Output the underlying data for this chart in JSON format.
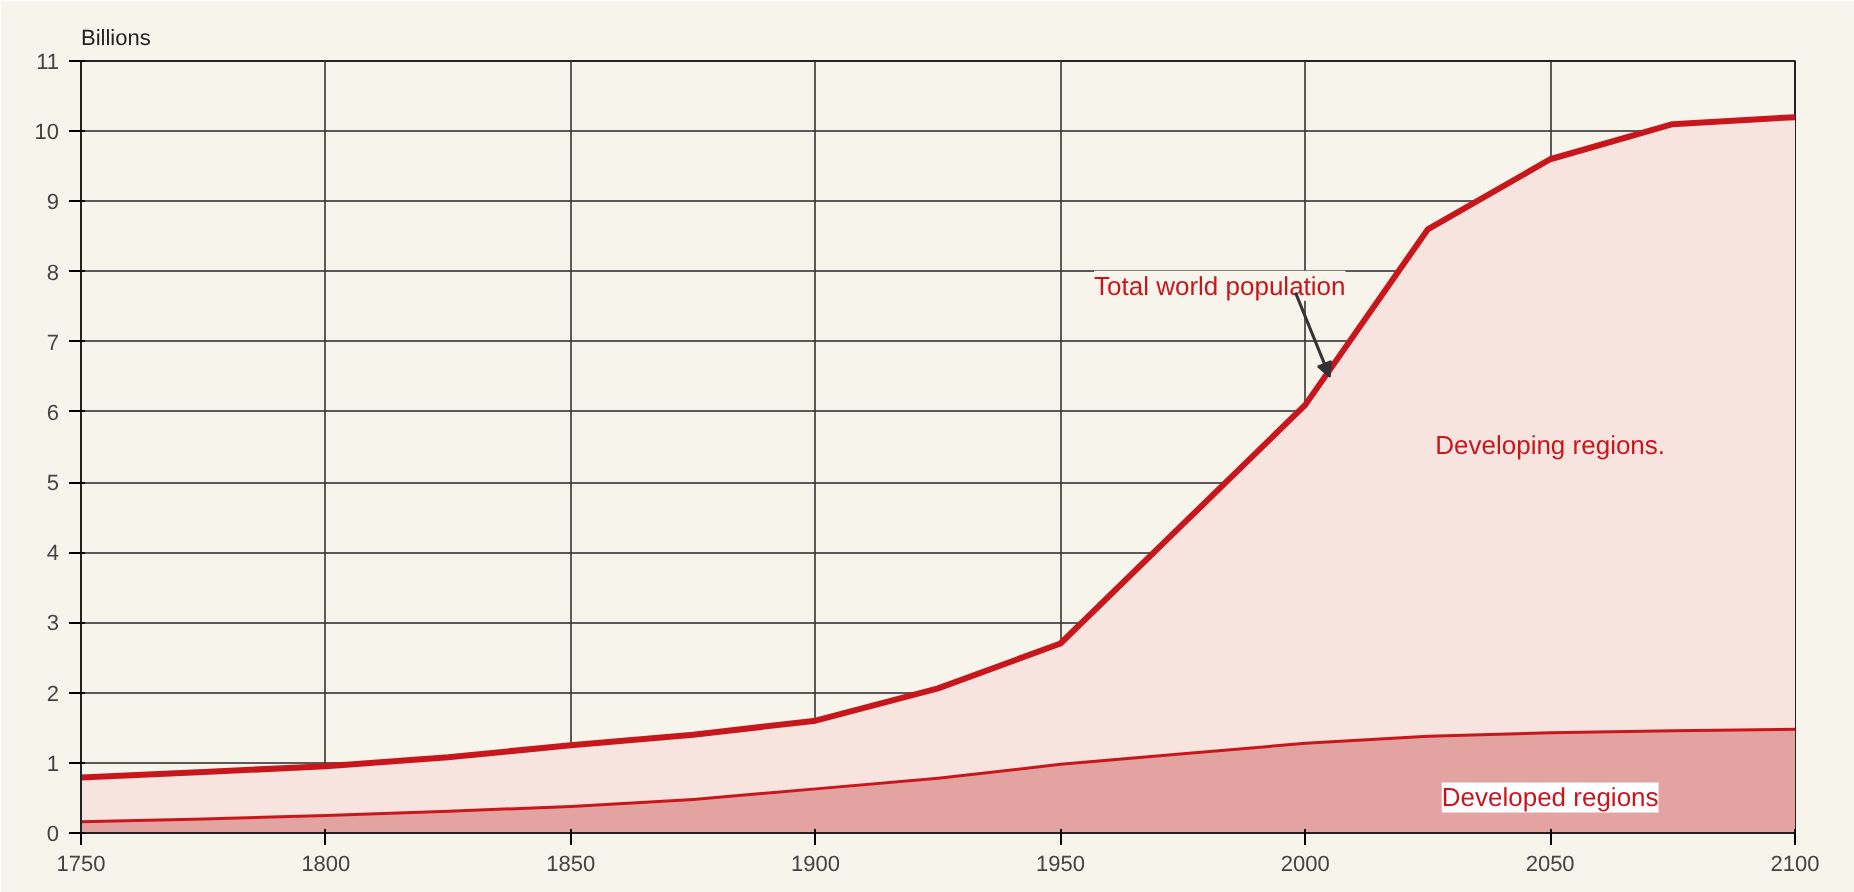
{
  "chart_data": {
    "type": "area",
    "stacked": true,
    "ylabel": "Billions",
    "x": [
      1750,
      1775,
      1800,
      1825,
      1850,
      1875,
      1900,
      1925,
      1950,
      1975,
      2000,
      2025,
      2050,
      2075,
      2100
    ],
    "series": [
      {
        "name": "Developed regions",
        "color": "#e3a3a0",
        "values": [
          0.18,
          0.22,
          0.27,
          0.33,
          0.4,
          0.5,
          0.65,
          0.8,
          1.0,
          1.15,
          1.3,
          1.4,
          1.45,
          1.48,
          1.5
        ]
      },
      {
        "name": "Developing regions.",
        "color": "#f8e4df",
        "values": [
          0.61,
          0.65,
          0.68,
          0.75,
          0.85,
          0.9,
          0.95,
          1.26,
          1.7,
          3.25,
          4.8,
          7.2,
          8.15,
          8.62,
          8.7
        ]
      }
    ],
    "annotations": [
      {
        "text": "Total world population",
        "x": 2005,
        "y": 6.5
      }
    ],
    "xlim": [
      1750,
      2100
    ],
    "ylim": [
      0,
      11
    ],
    "xticks": [
      1750,
      1800,
      1850,
      1900,
      1950,
      2000,
      2050,
      2100
    ],
    "yticks": [
      0,
      1,
      2,
      3,
      4,
      5,
      6,
      7,
      8,
      9,
      10,
      11
    ],
    "grid": true
  }
}
